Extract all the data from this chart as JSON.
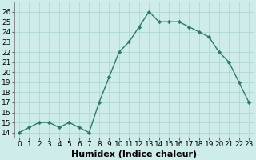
{
  "x": [
    0,
    1,
    2,
    3,
    4,
    5,
    6,
    7,
    8,
    9,
    10,
    11,
    12,
    13,
    14,
    15,
    16,
    17,
    18,
    19,
    20,
    21,
    22,
    23
  ],
  "y": [
    14,
    14.5,
    15,
    15,
    14.5,
    15,
    14.5,
    14,
    17,
    19.5,
    22,
    23,
    24.5,
    26,
    25,
    25,
    25,
    24.5,
    24,
    23.5,
    22,
    21,
    19,
    17
  ],
  "xlabel": "Humidex (Indice chaleur)",
  "ylim": [
    13.5,
    27
  ],
  "yticks": [
    14,
    15,
    16,
    17,
    18,
    19,
    20,
    21,
    22,
    23,
    24,
    25,
    26
  ],
  "xticks": [
    0,
    1,
    2,
    3,
    4,
    5,
    6,
    7,
    8,
    9,
    10,
    11,
    12,
    13,
    14,
    15,
    16,
    17,
    18,
    19,
    20,
    21,
    22,
    23
  ],
  "xtick_labels": [
    "0",
    "1",
    "2",
    "3",
    "4",
    "5",
    "6",
    "7",
    "8",
    "9",
    "10",
    "11",
    "12",
    "13",
    "14",
    "15",
    "16",
    "17",
    "18",
    "19",
    "20",
    "21",
    "22",
    "23"
  ],
  "line_color": "#2d7a6b",
  "marker": "D",
  "marker_size": 2.2,
  "line_width": 1.0,
  "bg_color": "#ceecea",
  "grid_color": "#b0d8d4",
  "xlabel_fontsize": 8,
  "tick_fontsize": 6.5
}
